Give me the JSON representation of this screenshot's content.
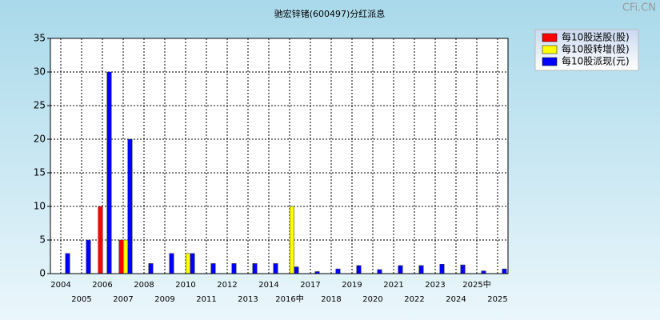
{
  "chart_data": {
    "type": "bar",
    "title": "驰宏锌锗(600497)分红派息",
    "watermark": "CFi.CN",
    "categories": [
      "2004",
      "2005",
      "2006",
      "2007",
      "2008",
      "2009",
      "2010",
      "2011",
      "2012",
      "2013",
      "2014",
      "2016中",
      "2017",
      "2018",
      "2019",
      "2020",
      "2021",
      "2022",
      "2023",
      "2024",
      "2025中",
      "2025"
    ],
    "series": [
      {
        "name": "每10股送股(股)",
        "color": "#ff0000",
        "values": [
          0,
          0,
          10,
          5,
          0,
          0,
          0,
          0,
          0,
          0,
          0,
          0,
          0,
          0,
          0,
          0,
          0,
          0,
          0,
          0,
          0,
          0
        ]
      },
      {
        "name": "每10股转增(股)",
        "color": "#ffff00",
        "values": [
          0,
          0,
          0,
          5,
          0,
          0,
          3,
          0,
          0,
          0,
          0,
          10,
          0,
          0,
          0,
          0,
          0,
          0,
          0,
          0,
          0,
          0
        ]
      },
      {
        "name": "每10股派现(元)",
        "color": "#0000ff",
        "values": [
          3,
          5,
          30,
          20,
          1.5,
          3,
          3,
          1.5,
          1.5,
          1.5,
          1.5,
          1,
          0.3,
          0.7,
          1.2,
          0.6,
          1.2,
          1.2,
          1.4,
          1.3,
          0.4,
          0.7
        ]
      }
    ],
    "ylim": [
      0,
      35
    ],
    "yticks": [
      0,
      5,
      10,
      15,
      20,
      25,
      30,
      35
    ],
    "grid": true,
    "legend": "top-right"
  }
}
